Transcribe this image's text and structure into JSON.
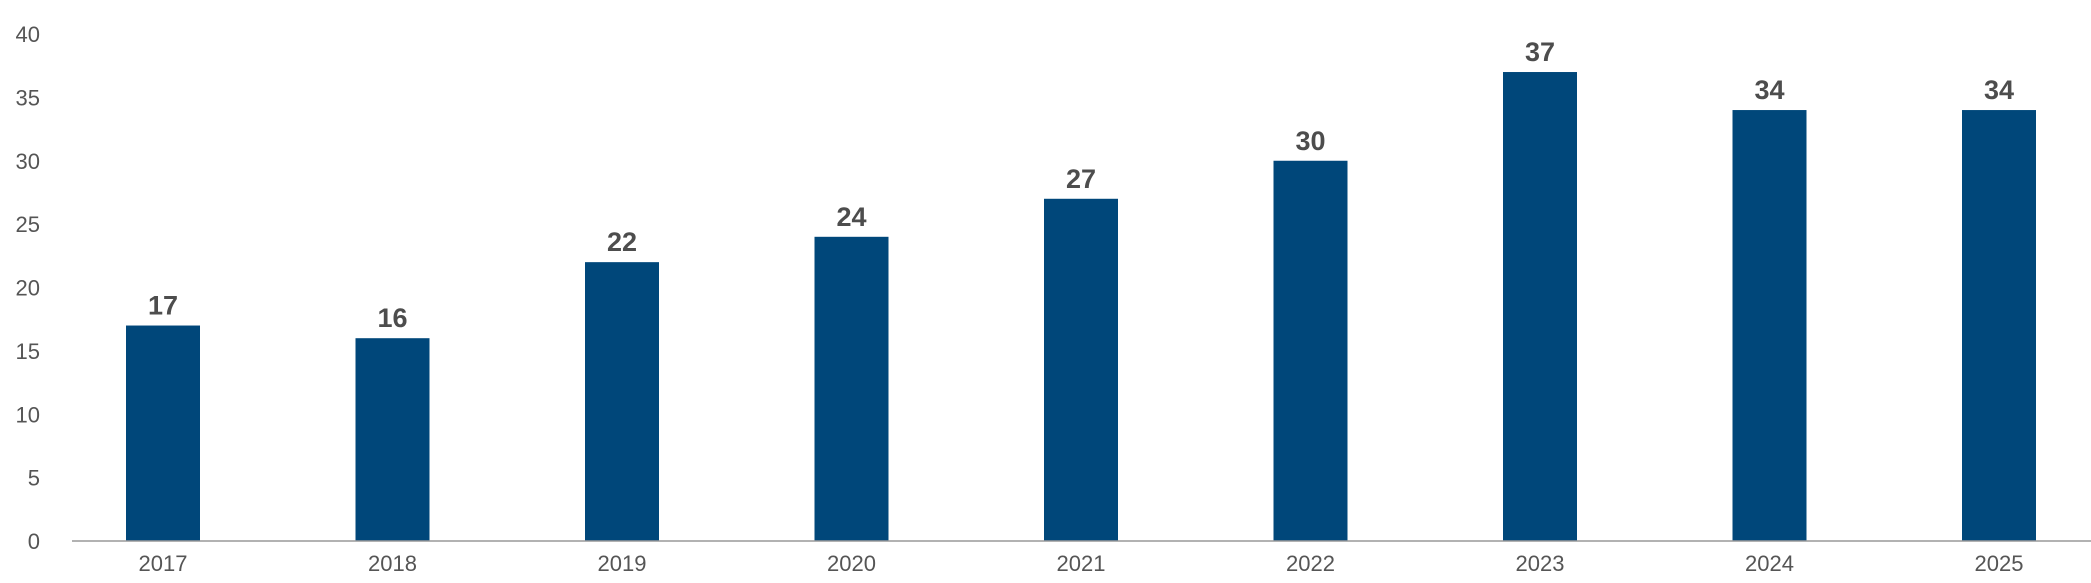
{
  "chart_data": {
    "type": "bar",
    "title": "",
    "xlabel": "",
    "ylabel": "",
    "categories": [
      "2017",
      "2018",
      "2019",
      "2020",
      "2021",
      "2022",
      "2023",
      "2024",
      "2025"
    ],
    "values": [
      17,
      16,
      22,
      24,
      27,
      30,
      37,
      34,
      34
    ],
    "data_labels": [
      "17",
      "16",
      "22",
      "24",
      "27",
      "30",
      "37",
      "34",
      "34"
    ],
    "ylim": [
      0,
      40
    ],
    "yticks": [
      0,
      5,
      10,
      15,
      20,
      25,
      30,
      35,
      40
    ],
    "ytick_labels": [
      "0",
      "5",
      "10",
      "15",
      "20",
      "25",
      "30",
      "35",
      "40"
    ],
    "grid": false,
    "legend": "none",
    "colors": {
      "bar": "#00477a",
      "axis": "#999999",
      "text": "#555555",
      "data_label": "#4d4d4d"
    }
  }
}
